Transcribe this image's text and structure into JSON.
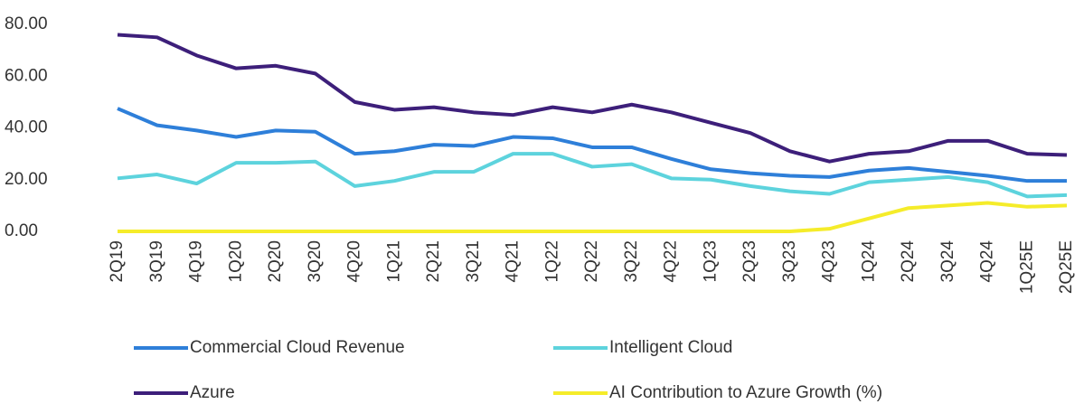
{
  "chart_data": {
    "type": "line",
    "categories": [
      "2Q19",
      "3Q19",
      "4Q19",
      "1Q20",
      "2Q20",
      "3Q20",
      "4Q20",
      "1Q21",
      "2Q21",
      "3Q21",
      "4Q21",
      "1Q22",
      "2Q22",
      "3Q22",
      "4Q22",
      "1Q23",
      "2Q23",
      "3Q23",
      "4Q23",
      "1Q24",
      "2Q24",
      "3Q24",
      "4Q24",
      "1Q25E",
      "2Q25E"
    ],
    "series": [
      {
        "name": "Commercial Cloud Revenue",
        "color": "#2e7fd9",
        "values": [
          47.5,
          41,
          39,
          36.5,
          39,
          38.5,
          30,
          31,
          33.5,
          33,
          36.5,
          36,
          32.5,
          32.5,
          28,
          24,
          22.5,
          21.5,
          21,
          23.5,
          24.5,
          23,
          21.5,
          19.5,
          19.5
        ]
      },
      {
        "name": "Intelligent Cloud",
        "color": "#5dd3dd",
        "values": [
          20.5,
          22,
          18.5,
          26.5,
          26.5,
          27,
          17.5,
          19.5,
          23,
          23,
          30,
          30,
          25,
          26,
          20.5,
          20,
          17.5,
          15.5,
          14.5,
          19,
          20,
          21,
          19,
          13.5,
          14
        ]
      },
      {
        "name": "Azure",
        "color": "#3d1f7a",
        "values": [
          76,
          75,
          68,
          63,
          64,
          61,
          50,
          47,
          48,
          46,
          45,
          48,
          46,
          49,
          46,
          42,
          38,
          31,
          27,
          30,
          31,
          35,
          35,
          30,
          29.5
        ]
      },
      {
        "name": "AI Contribution to Azure Growth (%)",
        "color": "#f5ec2a",
        "values": [
          0,
          0,
          0,
          0,
          0,
          0,
          0,
          0,
          0,
          0,
          0,
          0,
          0,
          0,
          0,
          0,
          0,
          0,
          1,
          5,
          9,
          10,
          11,
          9.5,
          10
        ]
      }
    ],
    "ylim": [
      0,
      80
    ],
    "yticks": [
      {
        "value": 0,
        "label": "0.00"
      },
      {
        "value": 20,
        "label": "20.00"
      },
      {
        "value": 40,
        "label": "40.00"
      },
      {
        "value": 60,
        "label": "60.00"
      },
      {
        "value": 80,
        "label": "80.00"
      }
    ]
  }
}
